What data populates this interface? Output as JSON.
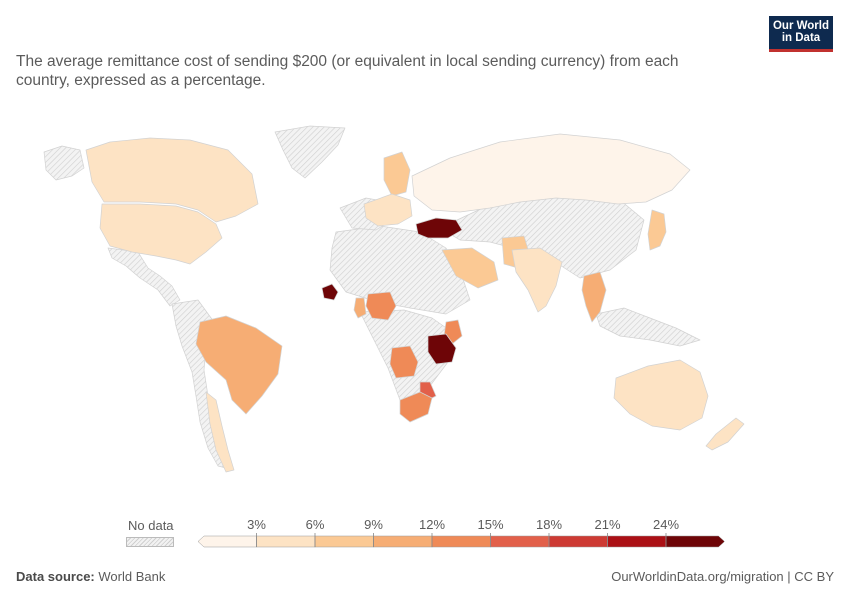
{
  "subtitle": "The average remittance cost of sending $200 (or equivalent in local sending currency) from each country, expressed as a percentage.",
  "logo": {
    "line1": "Our World",
    "line2": "in Data"
  },
  "legend": {
    "no_data": "No data",
    "ticks": [
      "3%",
      "6%",
      "9%",
      "12%",
      "15%",
      "18%",
      "21%",
      "24%"
    ],
    "colors": [
      "#fef4ea",
      "#fde3c4",
      "#fbc994",
      "#f6ad74",
      "#ef8a57",
      "#e2604a",
      "#cd3a33",
      "#ab1015",
      "#6e0507"
    ]
  },
  "footer": {
    "source_label": "Data source:",
    "source": "World Bank",
    "url": "OurWorldinData.org/migration | CC BY"
  },
  "colors": {
    "no_data_fill": "#ebebeb",
    "border": "#d0d0d0"
  },
  "map_data": {
    "type": "choropleth",
    "regions": [
      {
        "name": "Canada",
        "value": 6
      },
      {
        "name": "United States",
        "value": 6
      },
      {
        "name": "Brazil",
        "value": 11
      },
      {
        "name": "Chile",
        "value": 7
      },
      {
        "name": "Russia",
        "value": 2
      },
      {
        "name": "Australia",
        "value": 6
      },
      {
        "name": "New Zealand",
        "value": 7
      },
      {
        "name": "Japan",
        "value": 11
      },
      {
        "name": "India",
        "value": 5
      },
      {
        "name": "Turkey",
        "value": 25
      },
      {
        "name": "Senegal",
        "value": 25
      },
      {
        "name": "Tanzania",
        "value": 25
      },
      {
        "name": "South Africa",
        "value": 16
      },
      {
        "name": "Angola",
        "value": 13
      },
      {
        "name": "Nigeria",
        "value": 14
      },
      {
        "name": "Ghana",
        "value": 11
      },
      {
        "name": "Kenya",
        "value": 13
      },
      {
        "name": "Thailand",
        "value": 10
      },
      {
        "name": "Saudi Arabia",
        "value": 7
      },
      {
        "name": "Pakistan",
        "value": 8
      }
    ]
  }
}
